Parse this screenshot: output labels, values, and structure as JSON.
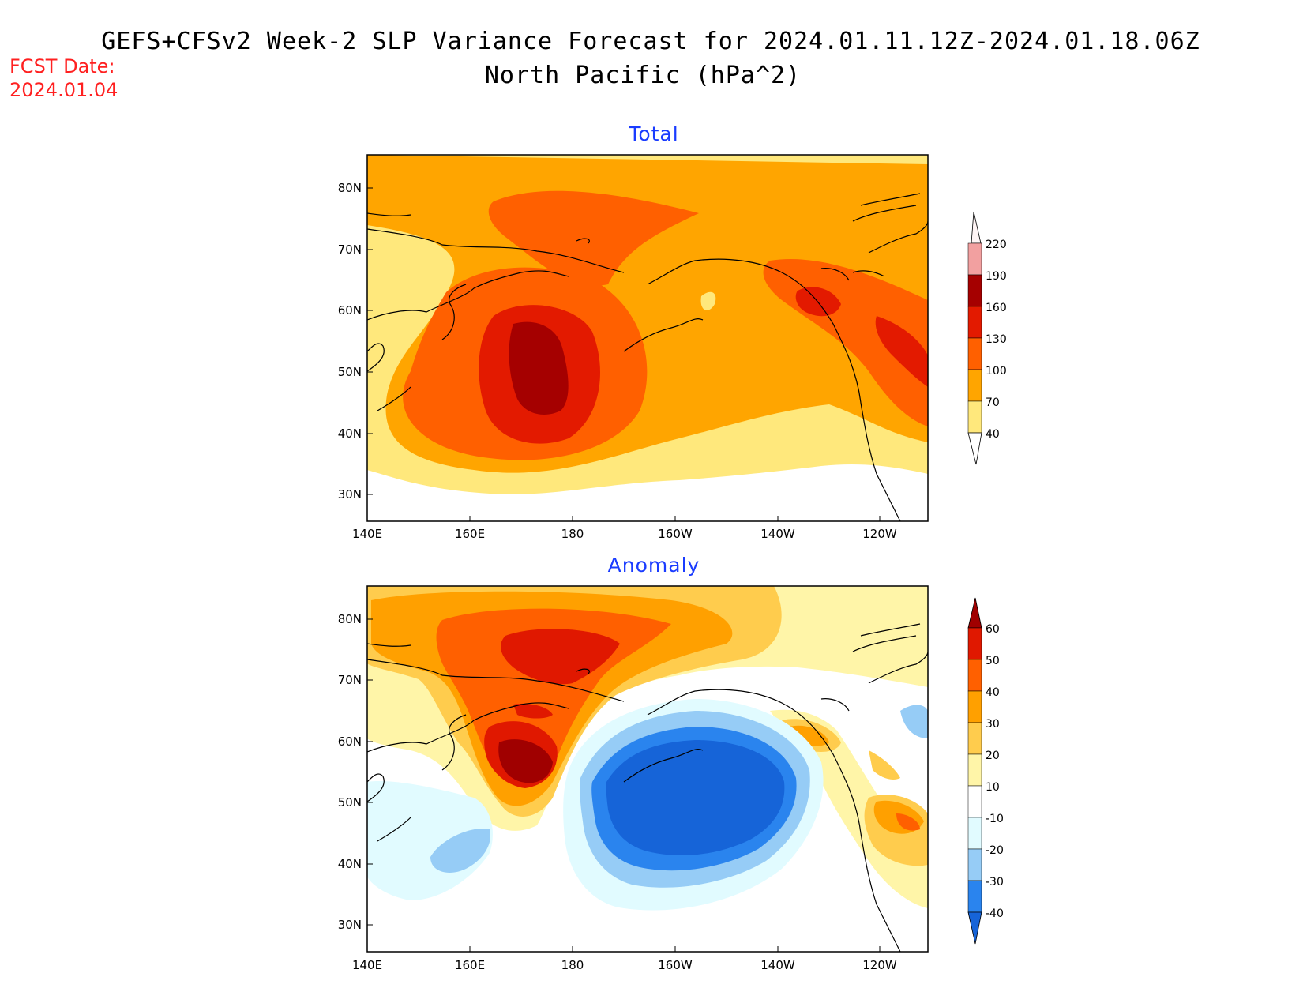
{
  "header": {
    "title_line1": "GEFS+CFSv2 Week-2 SLP Variance Forecast for 2024.01.11.12Z-2024.01.18.06Z",
    "title_line2": "North Pacific (hPa^2)",
    "fcst_label": "FCST Date:",
    "fcst_date": "2024.01.04"
  },
  "axes": {
    "lat_labels": [
      "80N",
      "70N",
      "60N",
      "50N",
      "40N",
      "30N"
    ],
    "lon_labels": [
      "140E",
      "160E",
      "180",
      "160W",
      "140W",
      "120W"
    ]
  },
  "panels": [
    {
      "title": "Total",
      "colorbar": {
        "labels": [
          "40",
          "70",
          "100",
          "130",
          "160",
          "190",
          "220"
        ],
        "colors": [
          "#ffe87c",
          "#ffa500",
          "#ff6000",
          "#e31a00",
          "#a50000",
          "#f2a0a0",
          "#fde0e0"
        ]
      }
    },
    {
      "title": "Anomaly",
      "colorbar": {
        "labels": [
          "-40",
          "-30",
          "-20",
          "-10",
          "10",
          "20",
          "30",
          "40",
          "50",
          "60"
        ],
        "colors": [
          "#1664d8",
          "#2a84ee",
          "#96ccf6",
          "#e1fbff",
          "#ffffff",
          "#fff5a8",
          "#ffcc4d",
          "#ffa000",
          "#ff6000",
          "#e01800",
          "#a00000"
        ]
      }
    }
  ],
  "colors": {
    "land_outline": "#000000",
    "frame": "#000000"
  }
}
